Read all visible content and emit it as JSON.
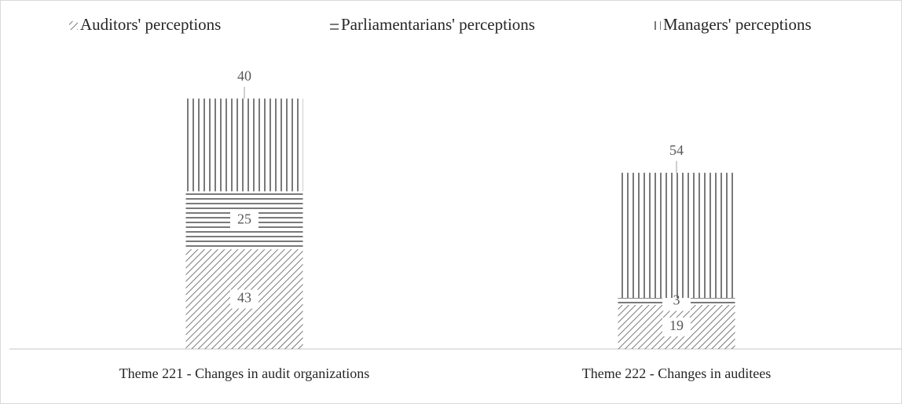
{
  "chart_data": {
    "type": "bar",
    "stacked": true,
    "categories": [
      "Theme 221 - Changes in audit organizations",
      "Theme 222 - Changes in auditees"
    ],
    "series": [
      {
        "name": "Auditors' perceptions",
        "color": "#595959",
        "values": [
          43,
          19
        ]
      },
      {
        "name": "Parliamentarians' perceptions",
        "color": "#595959",
        "values": [
          25,
          3
        ]
      },
      {
        "name": "Managers' perceptions",
        "color": "#595959",
        "values": [
          40,
          54
        ]
      }
    ],
    "legend": "top"
  }
}
